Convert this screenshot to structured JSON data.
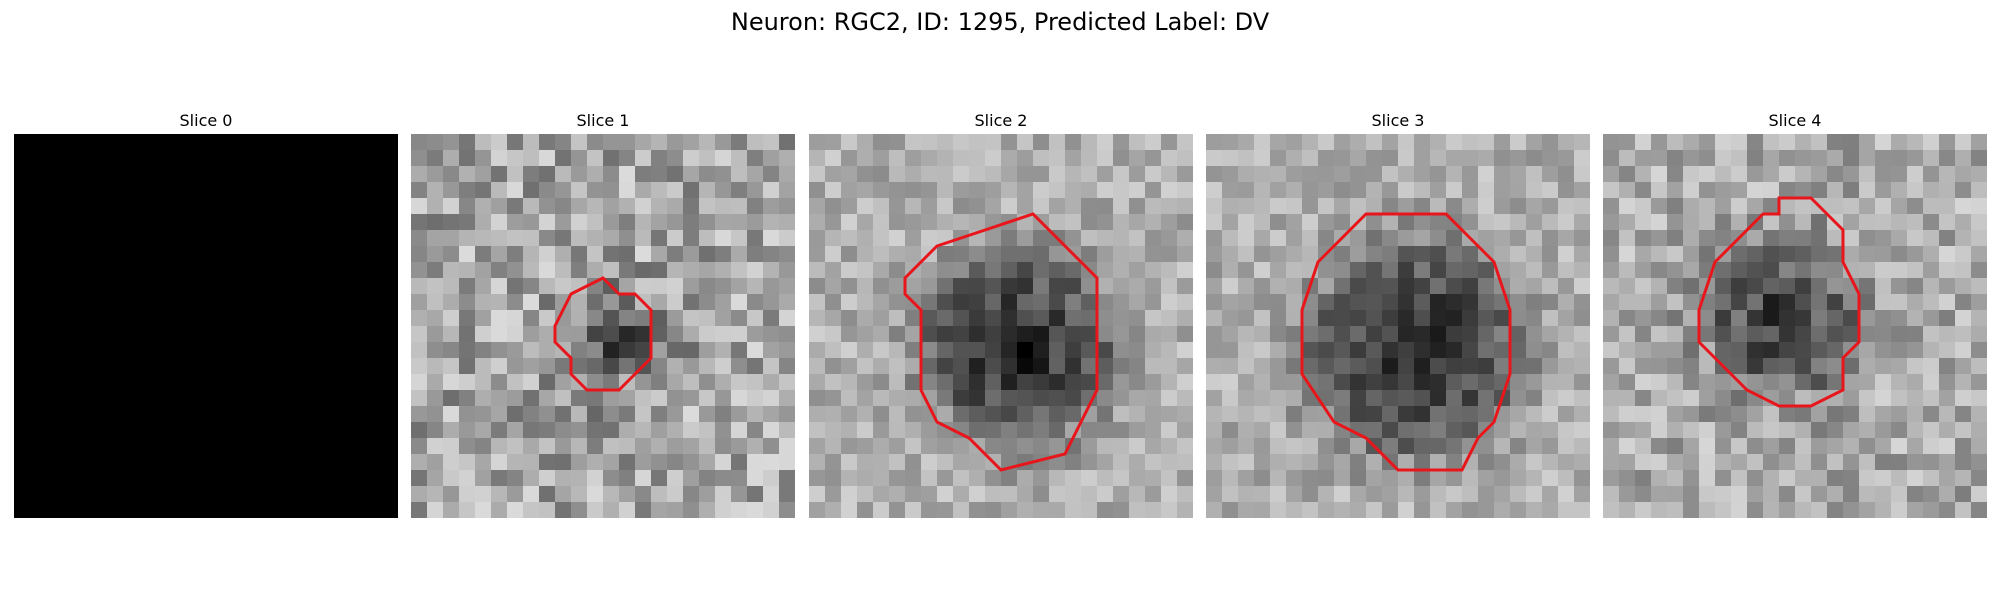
{
  "figure": {
    "title": "Neuron: RGC2, ID: 1295, Predicted Label: DV"
  },
  "panels": [
    {
      "title": "Slice 0",
      "image": "blank-black-slice",
      "has_outline": false,
      "outline_color": "#e8161b"
    },
    {
      "title": "Slice 1",
      "image": "grayscale-noise-small-dark-blob",
      "has_outline": true,
      "outline_color": "#e8161b"
    },
    {
      "title": "Slice 2",
      "image": "grayscale-dark-cell-body",
      "has_outline": true,
      "outline_color": "#e8161b"
    },
    {
      "title": "Slice 3",
      "image": "grayscale-dark-cell-body-large",
      "has_outline": true,
      "outline_color": "#e8161b"
    },
    {
      "title": "Slice 4",
      "image": "grayscale-dark-cell-body-medium",
      "has_outline": true,
      "outline_color": "#e8161b"
    }
  ]
}
